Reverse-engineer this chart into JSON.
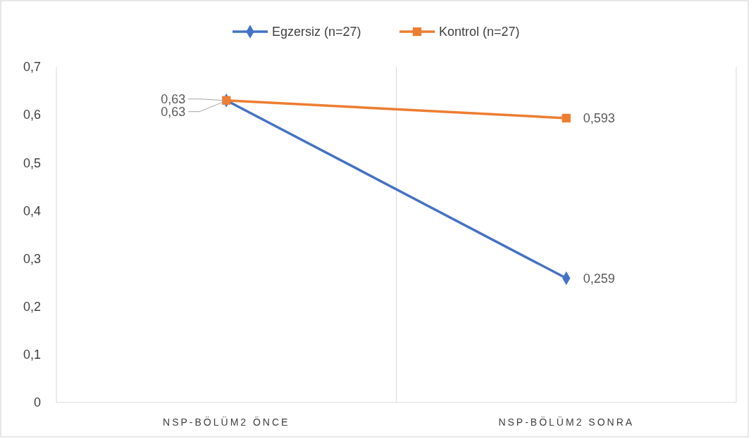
{
  "chart_data": {
    "type": "line",
    "categories": [
      "NSP-BÖLÜM2 ÖNCE",
      "NSP-BÖLÜM2 SONRA"
    ],
    "series": [
      {
        "name": "Egzersiz (n=27)",
        "color": "#4472c4",
        "marker": "diamond",
        "values": [
          0.63,
          0.259
        ],
        "value_labels": [
          "0,63",
          "0,259"
        ]
      },
      {
        "name": "Kontrol (n=27)",
        "color": "#ed7d31",
        "marker": "square",
        "values": [
          0.63,
          0.593
        ],
        "value_labels": [
          "0,63",
          "0,593"
        ]
      }
    ],
    "ylim": [
      0,
      0.7
    ],
    "yticks": [
      0,
      {
        "value": 0.1,
        "label": "0,1"
      },
      {
        "value": 0.2,
        "label": "0,2"
      },
      {
        "value": 0.3,
        "label": "0,3"
      },
      {
        "value": 0.4,
        "label": "0,4"
      },
      {
        "value": 0.5,
        "label": "0,5"
      },
      {
        "value": 0.6,
        "label": "0,6"
      },
      {
        "value": 0.7,
        "label": "0,7"
      }
    ],
    "grid": "x",
    "legend": "top"
  }
}
